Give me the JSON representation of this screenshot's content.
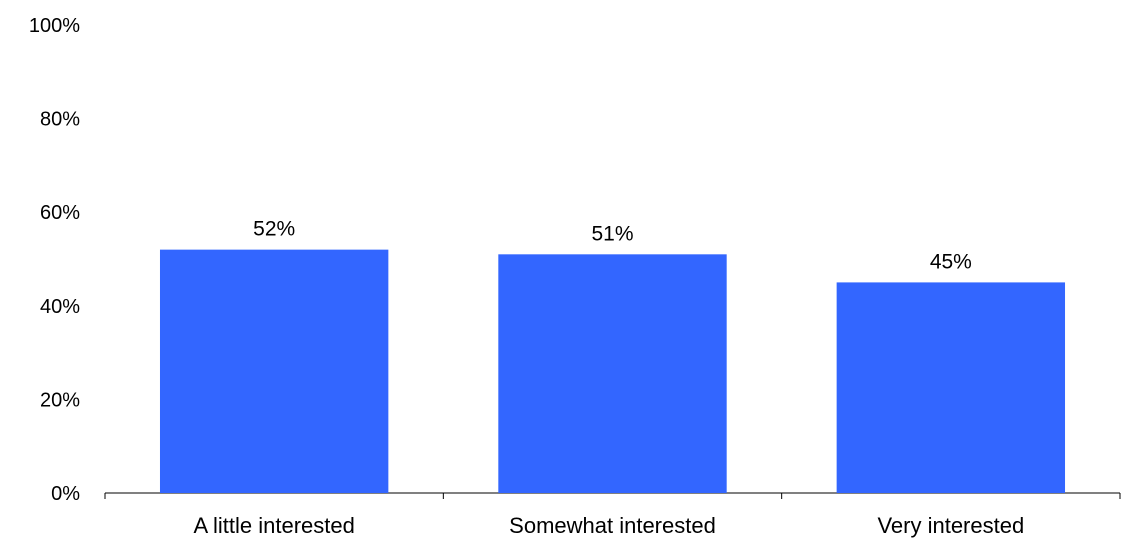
{
  "chart_data": {
    "type": "bar",
    "categories": [
      "A little interested",
      "Somewhat interested",
      "Very interested"
    ],
    "values": [
      52,
      51,
      45
    ],
    "data_labels": [
      "52%",
      "51%",
      "45%"
    ],
    "yticks": [
      0,
      20,
      40,
      60,
      80,
      100
    ],
    "ytick_labels": [
      "0%",
      "20%",
      "40%",
      "60%",
      "80%",
      "100%"
    ],
    "ylim": [
      0,
      100
    ],
    "grid": false,
    "legend": "none",
    "bar_color": "#3366FF",
    "axis_color": "#000000"
  }
}
